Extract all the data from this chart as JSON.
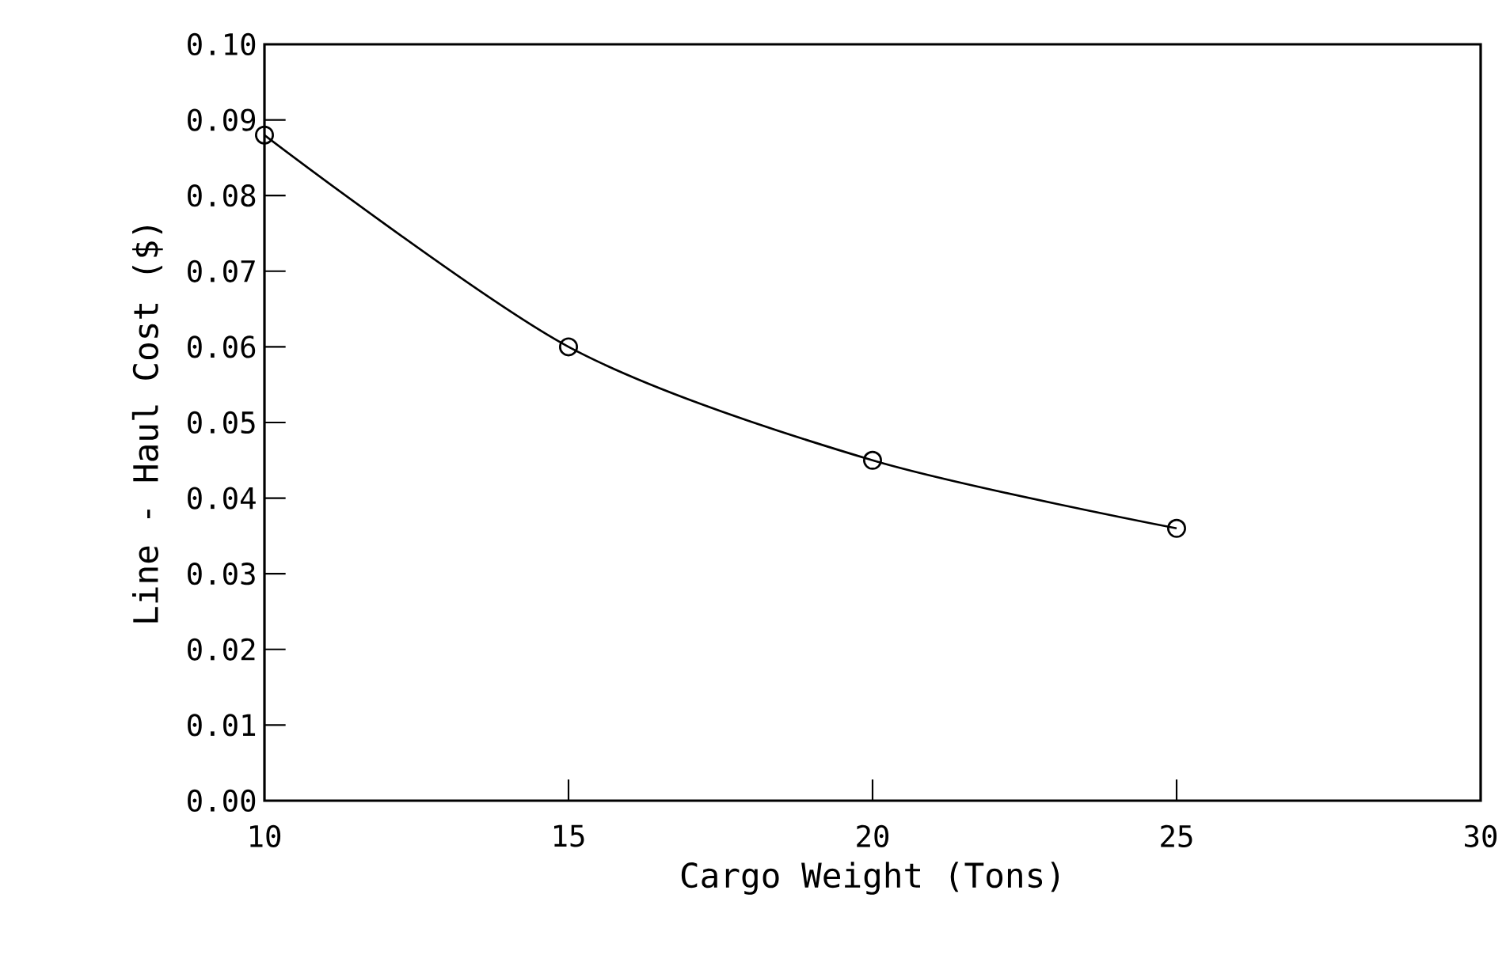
{
  "chart_data": {
    "type": "line",
    "xlabel": "Cargo Weight (Tons)",
    "ylabel": "Line - Haul Cost ($)",
    "x": [
      10,
      15,
      20,
      25
    ],
    "values": [
      0.088,
      0.06,
      0.045,
      0.036
    ],
    "color": "#000000",
    "marker": "circle",
    "line_style": "solid",
    "grid": false,
    "xlim": [
      10,
      30
    ],
    "xticks": [
      10,
      15,
      20,
      25,
      30
    ],
    "ylim": [
      0,
      0.1
    ],
    "yticks": [
      {
        "value": 0,
        "label": "0.00"
      },
      {
        "value": 0.01,
        "label": "0.01"
      },
      {
        "value": 0.02,
        "label": "0.02"
      },
      {
        "value": 0.03,
        "label": "0.03"
      },
      {
        "value": 0.04,
        "label": "0.04"
      },
      {
        "value": 0.05,
        "label": "0.05"
      },
      {
        "value": 0.06,
        "label": "0.06"
      },
      {
        "value": 0.07,
        "label": "0.07"
      },
      {
        "value": 0.08,
        "label": "0.08"
      },
      {
        "value": 0.09,
        "label": "0.09"
      },
      {
        "value": 0.1,
        "label": "0.10"
      }
    ]
  }
}
